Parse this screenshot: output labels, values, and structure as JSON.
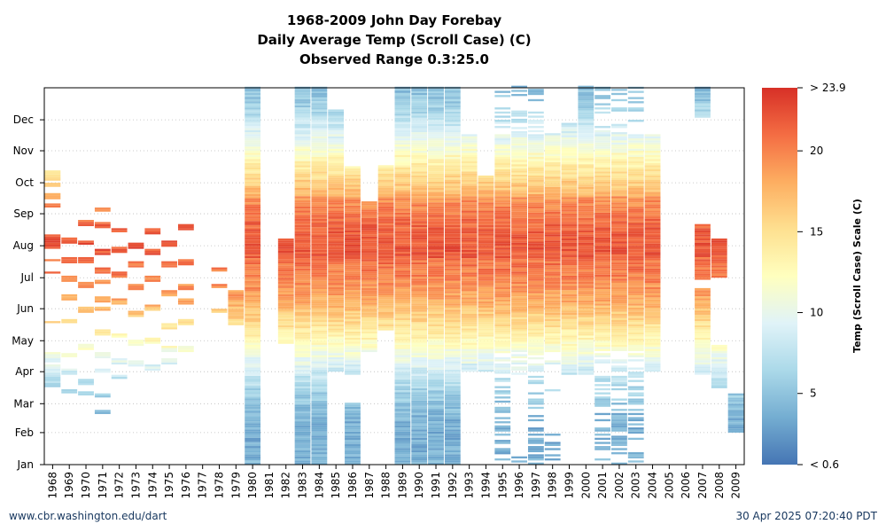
{
  "chart_data": {
    "type": "heatmap",
    "title": [
      "1968-2009 John Day Forebay",
      "Daily Average Temp (Scroll Case) (C)",
      "Observed Range 0.3:25.0"
    ],
    "x_categories": [
      "1968",
      "1969",
      "1970",
      "1971",
      "1972",
      "1973",
      "1974",
      "1975",
      "1976",
      "1977",
      "1978",
      "1979",
      "1980",
      "1981",
      "1982",
      "1983",
      "1984",
      "1985",
      "1986",
      "1987",
      "1988",
      "1989",
      "1990",
      "1991",
      "1992",
      "1993",
      "1994",
      "1995",
      "1996",
      "1997",
      "1998",
      "1999",
      "2000",
      "2001",
      "2002",
      "2003",
      "2004",
      "2005",
      "2006",
      "2007",
      "2008",
      "2009"
    ],
    "y_ticks": [
      "Jan",
      "Feb",
      "Mar",
      "Apr",
      "May",
      "Jun",
      "Jul",
      "Aug",
      "Sep",
      "Oct",
      "Nov",
      "Dec"
    ],
    "y_tick_days": [
      1,
      32,
      60,
      91,
      121,
      152,
      182,
      213,
      244,
      274,
      305,
      335
    ],
    "y_range_days": [
      1,
      366
    ],
    "grid": "dotted horizontal",
    "colorbar": {
      "label": "Temp (Scroll Case) Scale (C)",
      "min": 0.6,
      "max": 23.9,
      "ticks": [
        5,
        10,
        15,
        20
      ],
      "min_label": "< 0.6",
      "max_label": "> 23.9",
      "colors": [
        "#4575b4",
        "#74add1",
        "#abd9e9",
        "#e0f3f8",
        "#ffffbf",
        "#fee090",
        "#fdae61",
        "#f46d43",
        "#d73027"
      ],
      "position": "right"
    },
    "coverage": [
      {
        "year": "1968",
        "days": [
          [
            76,
            90
          ],
          [
            92,
            96
          ],
          [
            100,
            108
          ],
          [
            138,
            138
          ],
          [
            186,
            186
          ],
          [
            198,
            198
          ],
          [
            210,
            222
          ],
          [
            250,
            252
          ],
          [
            258,
            262
          ],
          [
            270,
            272
          ],
          [
            276,
            284
          ]
        ],
        "pattern": "sparse"
      },
      {
        "year": "1969",
        "days": [
          [
            70,
            72
          ],
          [
            88,
            92
          ],
          [
            105,
            107
          ],
          [
            138,
            140
          ],
          [
            160,
            165
          ],
          [
            178,
            182
          ],
          [
            196,
            200
          ],
          [
            215,
            220
          ]
        ],
        "pattern": "sparse"
      },
      {
        "year": "1970",
        "days": [
          [
            68,
            70
          ],
          [
            78,
            82
          ],
          [
            112,
            116
          ],
          [
            148,
            152
          ],
          [
            172,
            176
          ],
          [
            196,
            200
          ],
          [
            214,
            216
          ],
          [
            232,
            236
          ]
        ],
        "pattern": "sparse"
      },
      {
        "year": "1971",
        "days": [
          [
            50,
            52
          ],
          [
            66,
            68
          ],
          [
            90,
            92
          ],
          [
            104,
            108
          ],
          [
            126,
            130
          ],
          [
            150,
            152
          ],
          [
            158,
            162
          ],
          [
            176,
            178
          ],
          [
            186,
            190
          ],
          [
            204,
            208
          ],
          [
            230,
            234
          ],
          [
            246,
            248
          ]
        ],
        "pattern": "sparse"
      },
      {
        "year": "1972",
        "days": [
          [
            84,
            86
          ],
          [
            98,
            102
          ],
          [
            124,
            126
          ],
          [
            156,
            160
          ],
          [
            182,
            186
          ],
          [
            206,
            210
          ],
          [
            226,
            228
          ]
        ],
        "pattern": "sparse"
      },
      {
        "year": "1973",
        "days": [
          [
            96,
            100
          ],
          [
            116,
            120
          ],
          [
            144,
            148
          ],
          [
            170,
            174
          ],
          [
            192,
            196
          ],
          [
            210,
            214
          ]
        ],
        "pattern": "sparse"
      },
      {
        "year": "1974",
        "days": [
          [
            92,
            96
          ],
          [
            118,
            122
          ],
          [
            150,
            154
          ],
          [
            178,
            182
          ],
          [
            204,
            208
          ],
          [
            224,
            228
          ]
        ],
        "pattern": "sparse"
      },
      {
        "year": "1975",
        "days": [
          [
            98,
            102
          ],
          [
            110,
            114
          ],
          [
            132,
            136
          ],
          [
            164,
            168
          ],
          [
            192,
            196
          ],
          [
            212,
            216
          ]
        ],
        "pattern": "sparse"
      },
      {
        "year": "1976",
        "days": [
          [
            110,
            114
          ],
          [
            136,
            140
          ],
          [
            156,
            160
          ],
          [
            170,
            174
          ],
          [
            194,
            198
          ],
          [
            228,
            232
          ]
        ],
        "pattern": "sparse"
      },
      {
        "year": "1977",
        "days": [],
        "pattern": "none"
      },
      {
        "year": "1978",
        "days": [
          [
            148,
            150
          ],
          [
            172,
            174
          ],
          [
            188,
            190
          ]
        ],
        "pattern": "sparse"
      },
      {
        "year": "1979",
        "days": [
          [
            136,
            168
          ]
        ],
        "pattern": "solid"
      },
      {
        "year": "1980",
        "days": [
          [
            1,
            366
          ]
        ],
        "pattern": "solid"
      },
      {
        "year": "1981",
        "days": [],
        "pattern": "none"
      },
      {
        "year": "1982",
        "days": [
          [
            118,
            218
          ]
        ],
        "pattern": "solid"
      },
      {
        "year": "1983",
        "days": [
          [
            1,
            366
          ]
        ],
        "pattern": "solid"
      },
      {
        "year": "1984",
        "days": [
          [
            1,
            366
          ]
        ],
        "pattern": "solid"
      },
      {
        "year": "1985",
        "days": [
          [
            91,
            344
          ]
        ],
        "pattern": "solid"
      },
      {
        "year": "1986",
        "days": [
          [
            1,
            60
          ],
          [
            88,
            289
          ]
        ],
        "pattern": "solid"
      },
      {
        "year": "1987",
        "days": [
          [
            110,
            254
          ]
        ],
        "pattern": "solid"
      },
      {
        "year": "1988",
        "days": [
          [
            131,
            289
          ]
        ],
        "pattern": "solid"
      },
      {
        "year": "1989",
        "days": [
          [
            1,
            366
          ]
        ],
        "pattern": "solid"
      },
      {
        "year": "1990",
        "days": [
          [
            1,
            366
          ]
        ],
        "pattern": "solid"
      },
      {
        "year": "1991",
        "days": [
          [
            1,
            366
          ]
        ],
        "pattern": "solid"
      },
      {
        "year": "1992",
        "days": [
          [
            1,
            366
          ]
        ],
        "pattern": "solid"
      },
      {
        "year": "1993",
        "days": [
          [
            91,
            320
          ]
        ],
        "pattern": "solid"
      },
      {
        "year": "1994",
        "days": [
          [
            91,
            280
          ]
        ],
        "pattern": "solid"
      },
      {
        "year": "1995",
        "days": [
          [
            1,
            366
          ]
        ],
        "pattern": "sparse-winter"
      },
      {
        "year": "1996",
        "days": [
          [
            1,
            12
          ],
          [
            88,
            366
          ]
        ],
        "pattern": "sparse-winter"
      },
      {
        "year": "1997",
        "days": [
          [
            1,
            366
          ]
        ],
        "pattern": "sparse-winter"
      },
      {
        "year": "1998",
        "days": [
          [
            1,
            30
          ],
          [
            70,
            75
          ],
          [
            88,
            320
          ]
        ],
        "pattern": "sparse-winter"
      },
      {
        "year": "1999",
        "days": [
          [
            88,
            330
          ]
        ],
        "pattern": "solid"
      },
      {
        "year": "2000",
        "days": [
          [
            88,
            366
          ]
        ],
        "pattern": "solid"
      },
      {
        "year": "2001",
        "days": [
          [
            1,
            366
          ]
        ],
        "pattern": "sparse-winter"
      },
      {
        "year": "2002",
        "days": [
          [
            1,
            366
          ]
        ],
        "pattern": "sparse-winter"
      },
      {
        "year": "2003",
        "days": [
          [
            1,
            366
          ]
        ],
        "pattern": "sparse-winter"
      },
      {
        "year": "2004",
        "days": [
          [
            91,
            320
          ]
        ],
        "pattern": "solid"
      },
      {
        "year": "2005",
        "days": [],
        "pattern": "none"
      },
      {
        "year": "2006",
        "days": [],
        "pattern": "none"
      },
      {
        "year": "2007",
        "days": [
          [
            88,
            170
          ],
          [
            180,
            232
          ],
          [
            337,
            366
          ]
        ],
        "pattern": "solid"
      },
      {
        "year": "2008",
        "days": [
          [
            75,
            115
          ],
          [
            182,
            218
          ]
        ],
        "pattern": "solid"
      },
      {
        "year": "2009",
        "days": [
          [
            32,
            68
          ]
        ],
        "pattern": "solid"
      }
    ]
  },
  "footer": {
    "left": "www.cbr.washington.edu/dart",
    "right": "30 Apr 2025 07:20:40 PDT"
  }
}
